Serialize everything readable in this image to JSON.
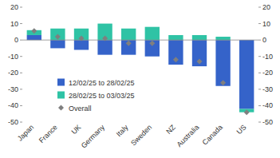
{
  "chart_data": {
    "type": "bar",
    "stacked": true,
    "grid": false,
    "legend": "lower left",
    "categories": [
      "Japan",
      "France",
      "UK",
      "Germany",
      "Italy",
      "Sweden",
      "NZ",
      "Australia",
      "Canada",
      "US"
    ],
    "series": [
      {
        "name": "12/02/25 to 28/02/25",
        "type": "bar",
        "color": "#3563c9",
        "values": [
          3,
          -5,
          -6,
          -9,
          -9,
          -10,
          -15,
          -16,
          -28,
          -42
        ]
      },
      {
        "name": "28/02/25 to 03/03/25",
        "type": "bar",
        "color": "#2fc3a5",
        "values": [
          3,
          7,
          7,
          10,
          7,
          8,
          3,
          3,
          2,
          -2
        ]
      },
      {
        "name": "Overall",
        "type": "scatter",
        "marker": "diamond",
        "color": "#7f7f7f",
        "values": [
          5.5,
          2,
          1,
          1,
          -2,
          -2,
          -12,
          -13,
          -26,
          -44
        ]
      }
    ],
    "ylim": [
      -50,
      20
    ],
    "yticks": [
      -50,
      -40,
      -30,
      -20,
      -10,
      0,
      10,
      20
    ],
    "y2lim": [
      -50,
      20
    ],
    "y2ticks": [
      -50,
      -40,
      -30,
      -20,
      -10,
      0,
      10,
      20
    ]
  }
}
